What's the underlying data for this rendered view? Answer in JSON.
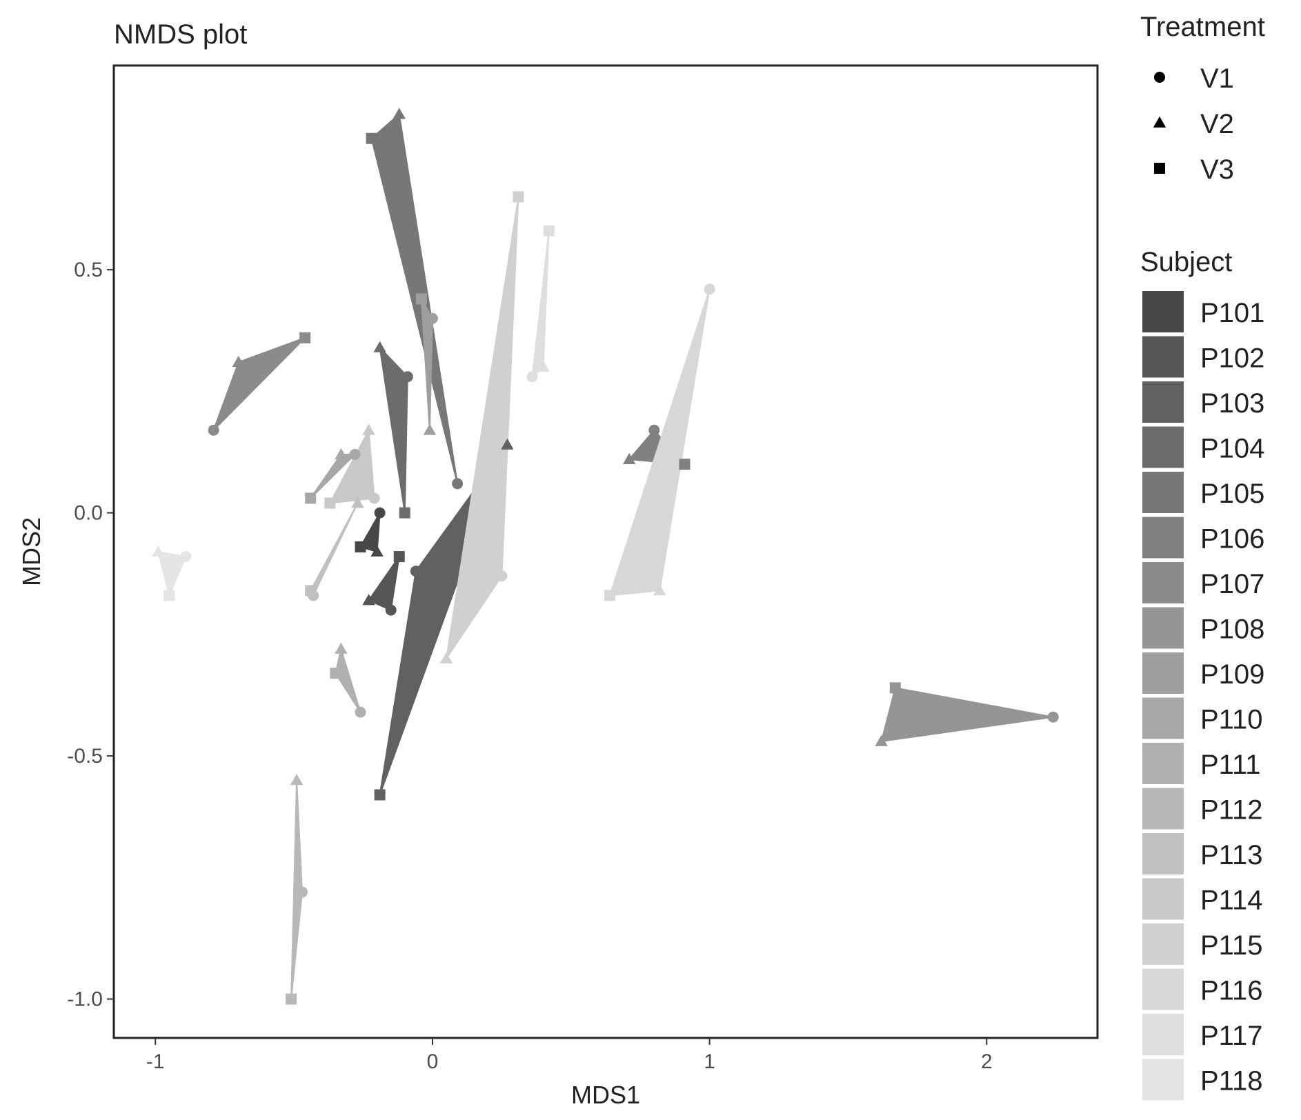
{
  "chart_data": {
    "type": "scatter",
    "title": "NMDS plot",
    "xlabel": "MDS1",
    "ylabel": "MDS2",
    "xlim": [
      -1.15,
      2.4
    ],
    "ylim": [
      -1.08,
      0.92
    ],
    "x_ticks": [
      -1,
      0,
      1,
      2
    ],
    "x_tick_labels": [
      "-1",
      "0",
      "1",
      "2"
    ],
    "y_ticks": [
      -1.0,
      -0.5,
      0.0,
      0.5
    ],
    "y_tick_labels": [
      "-1.0",
      "-0.5",
      "0.0",
      "0.5"
    ],
    "grid": false,
    "hulls_per_subject": true,
    "shape_legend": {
      "title": "Treatment",
      "items": [
        {
          "label": "V1",
          "shape": "circle"
        },
        {
          "label": "V2",
          "shape": "triangle"
        },
        {
          "label": "V3",
          "shape": "square"
        }
      ]
    },
    "color_legend": {
      "title": "Subject",
      "items": [
        {
          "label": "P101",
          "color": "#474747"
        },
        {
          "label": "P102",
          "color": "#555555"
        },
        {
          "label": "P103",
          "color": "#616161"
        },
        {
          "label": "P104",
          "color": "#6c6c6c"
        },
        {
          "label": "P105",
          "color": "#777777"
        },
        {
          "label": "P106",
          "color": "#818181"
        },
        {
          "label": "P107",
          "color": "#8b8b8b"
        },
        {
          "label": "P108",
          "color": "#959595"
        },
        {
          "label": "P109",
          "color": "#9e9e9e"
        },
        {
          "label": "P110",
          "color": "#a7a7a7"
        },
        {
          "label": "P111",
          "color": "#b0b0b0"
        },
        {
          "label": "P112",
          "color": "#b8b8b8"
        },
        {
          "label": "P113",
          "color": "#c0c0c0"
        },
        {
          "label": "P114",
          "color": "#c8c8c8"
        },
        {
          "label": "P115",
          "color": "#d0d0d0"
        },
        {
          "label": "P116",
          "color": "#d7d7d7"
        },
        {
          "label": "P117",
          "color": "#dedede"
        },
        {
          "label": "P118",
          "color": "#e5e5e5"
        }
      ]
    },
    "series": [
      {
        "subject": "P101",
        "points": [
          {
            "treatment": "V1",
            "x": -0.19,
            "y": 0.0
          },
          {
            "treatment": "V2",
            "x": -0.2,
            "y": -0.08
          },
          {
            "treatment": "V3",
            "x": -0.26,
            "y": -0.07
          }
        ]
      },
      {
        "subject": "P102",
        "points": [
          {
            "treatment": "V1",
            "x": -0.15,
            "y": -0.2
          },
          {
            "treatment": "V2",
            "x": -0.23,
            "y": -0.18
          },
          {
            "treatment": "V3",
            "x": -0.12,
            "y": -0.09
          }
        ]
      },
      {
        "subject": "P103",
        "points": [
          {
            "treatment": "V1",
            "x": -0.06,
            "y": -0.12
          },
          {
            "treatment": "V2",
            "x": 0.27,
            "y": 0.14
          },
          {
            "treatment": "V3",
            "x": -0.19,
            "y": -0.58
          }
        ]
      },
      {
        "subject": "P104",
        "points": [
          {
            "treatment": "V1",
            "x": -0.09,
            "y": 0.28
          },
          {
            "treatment": "V2",
            "x": -0.19,
            "y": 0.34
          },
          {
            "treatment": "V3",
            "x": -0.1,
            "y": 0.0
          }
        ]
      },
      {
        "subject": "P105",
        "points": [
          {
            "treatment": "V1",
            "x": 0.09,
            "y": 0.06
          },
          {
            "treatment": "V2",
            "x": -0.12,
            "y": 0.82
          },
          {
            "treatment": "V3",
            "x": -0.22,
            "y": 0.77
          }
        ]
      },
      {
        "subject": "P106",
        "points": [
          {
            "treatment": "V1",
            "x": 0.8,
            "y": 0.17
          },
          {
            "treatment": "V2",
            "x": 0.71,
            "y": 0.11
          },
          {
            "treatment": "V3",
            "x": 0.91,
            "y": 0.1
          }
        ]
      },
      {
        "subject": "P107",
        "points": [
          {
            "treatment": "V1",
            "x": -0.79,
            "y": 0.17
          },
          {
            "treatment": "V2",
            "x": -0.7,
            "y": 0.31
          },
          {
            "treatment": "V3",
            "x": -0.46,
            "y": 0.36
          }
        ]
      },
      {
        "subject": "P108",
        "points": [
          {
            "treatment": "V1",
            "x": 2.24,
            "y": -0.42
          },
          {
            "treatment": "V2",
            "x": 1.62,
            "y": -0.47
          },
          {
            "treatment": "V3",
            "x": 1.67,
            "y": -0.36
          }
        ]
      },
      {
        "subject": "P109",
        "points": [
          {
            "treatment": "V1",
            "x": 0.0,
            "y": 0.4
          },
          {
            "treatment": "V2",
            "x": -0.01,
            "y": 0.17
          },
          {
            "treatment": "V3",
            "x": -0.04,
            "y": 0.44
          }
        ]
      },
      {
        "subject": "P110",
        "points": [
          {
            "treatment": "V1",
            "x": -0.28,
            "y": 0.12
          },
          {
            "treatment": "V2",
            "x": -0.33,
            "y": 0.12
          },
          {
            "treatment": "V3",
            "x": -0.44,
            "y": 0.03
          }
        ]
      },
      {
        "subject": "P111",
        "points": [
          {
            "treatment": "V1",
            "x": -0.26,
            "y": -0.41
          },
          {
            "treatment": "V2",
            "x": -0.33,
            "y": -0.28
          },
          {
            "treatment": "V3",
            "x": -0.35,
            "y": -0.33
          }
        ]
      },
      {
        "subject": "P112",
        "points": [
          {
            "treatment": "V1",
            "x": -0.47,
            "y": -0.78
          },
          {
            "treatment": "V2",
            "x": -0.49,
            "y": -0.55
          },
          {
            "treatment": "V3",
            "x": -0.51,
            "y": -1.0
          }
        ]
      },
      {
        "subject": "P113",
        "points": [
          {
            "treatment": "V1",
            "x": -0.43,
            "y": -0.17
          },
          {
            "treatment": "V2",
            "x": -0.27,
            "y": 0.02
          },
          {
            "treatment": "V3",
            "x": -0.44,
            "y": -0.16
          }
        ]
      },
      {
        "subject": "P114",
        "points": [
          {
            "treatment": "V1",
            "x": -0.21,
            "y": 0.03
          },
          {
            "treatment": "V2",
            "x": -0.23,
            "y": 0.17
          },
          {
            "treatment": "V3",
            "x": -0.37,
            "y": 0.02
          }
        ]
      },
      {
        "subject": "P115",
        "points": [
          {
            "treatment": "V1",
            "x": 0.25,
            "y": -0.13
          },
          {
            "treatment": "V2",
            "x": 0.05,
            "y": -0.3
          },
          {
            "treatment": "V3",
            "x": 0.31,
            "y": 0.65
          }
        ]
      },
      {
        "subject": "P116",
        "points": [
          {
            "treatment": "V1",
            "x": 1.0,
            "y": 0.46
          },
          {
            "treatment": "V2",
            "x": 0.82,
            "y": -0.16
          },
          {
            "treatment": "V3",
            "x": 0.64,
            "y": -0.17
          }
        ]
      },
      {
        "subject": "P117",
        "points": [
          {
            "treatment": "V1",
            "x": 0.36,
            "y": 0.28
          },
          {
            "treatment": "V2",
            "x": 0.4,
            "y": 0.3
          },
          {
            "treatment": "V3",
            "x": 0.42,
            "y": 0.58
          }
        ]
      },
      {
        "subject": "P118",
        "points": [
          {
            "treatment": "V1",
            "x": -0.89,
            "y": -0.09
          },
          {
            "treatment": "V2",
            "x": -0.99,
            "y": -0.08
          },
          {
            "treatment": "V3",
            "x": -0.95,
            "y": -0.17
          }
        ]
      }
    ]
  }
}
